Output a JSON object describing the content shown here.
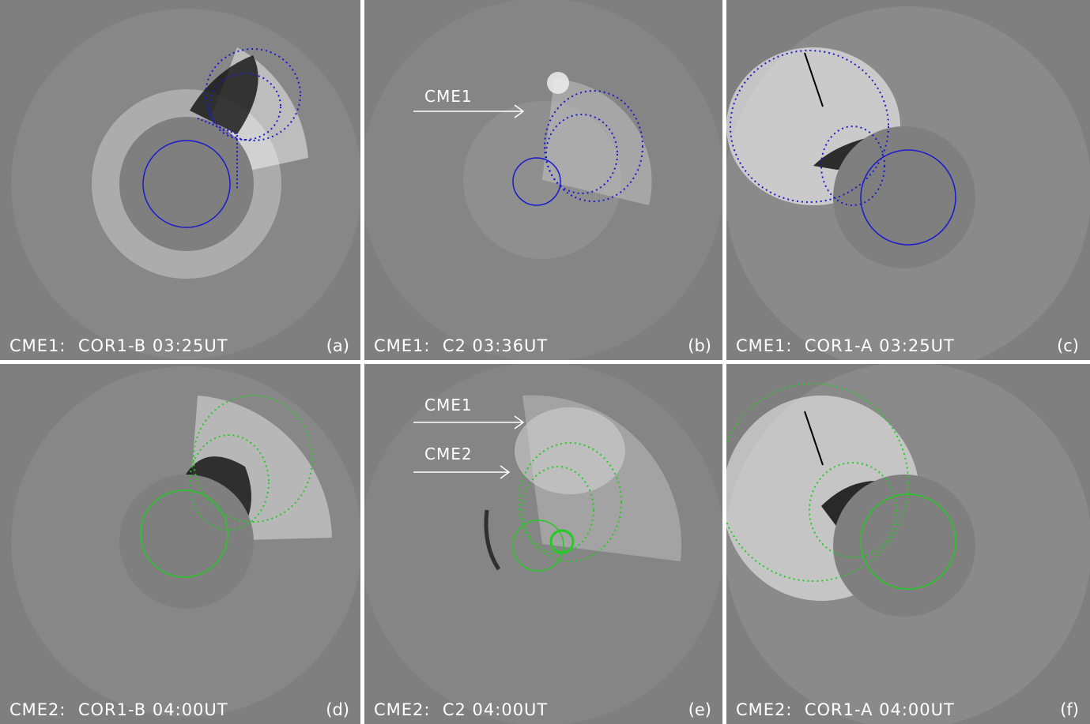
{
  "panels": [
    {
      "id": "a",
      "caption": "CME1:  COR1-B 03:25UT",
      "label": "(a)"
    },
    {
      "id": "b",
      "caption": "CME1:  C2 03:36UT",
      "label": "(b)",
      "annotations": [
        "CME1"
      ]
    },
    {
      "id": "c",
      "caption": "CME1:  COR1-A 03:25UT",
      "label": "(c)"
    },
    {
      "id": "d",
      "caption": "CME2:  COR1-B 04:00UT",
      "label": "(d)"
    },
    {
      "id": "e",
      "caption": "CME2:  C2 04:00UT",
      "label": "(e)",
      "annotations": [
        "CME1",
        "CME2"
      ]
    },
    {
      "id": "f",
      "caption": "CME2:  COR1-A 04:00UT",
      "label": "(f)"
    }
  ],
  "colors": {
    "cme1_model": "#1a1acc",
    "cme2_model": "#22cc22",
    "background": "#7f7f7f",
    "divider": "#ffffff"
  }
}
